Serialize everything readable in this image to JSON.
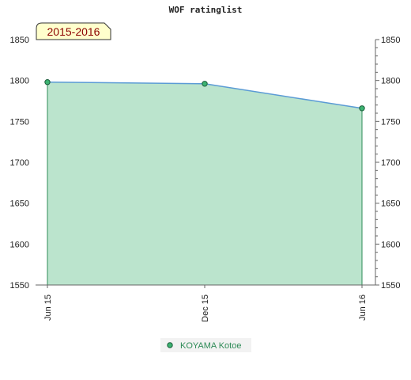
{
  "chart_data": {
    "type": "area",
    "title": "WOF ratinglist",
    "period_label": "2015-2016",
    "xlabel": "",
    "ylabel": "",
    "x": [
      "Jun 15",
      "Dec 15",
      "Jun 16"
    ],
    "series": [
      {
        "name": "KOYAMA Kotoe",
        "values": [
          1798,
          1796,
          1766
        ]
      }
    ],
    "ylim": [
      1550,
      1850
    ],
    "yticks": [
      1550,
      1600,
      1650,
      1700,
      1750,
      1800,
      1850
    ],
    "y_axis_sides": "left-and-right",
    "grid": false,
    "legend": "bottom-center",
    "colors": {
      "line": "#5b9bd5",
      "area": "#3cb371",
      "marker": "#3cb371",
      "period_bg": "#ffffcc",
      "period_text": "#8b0000",
      "legend_text": "#2e8b57"
    },
    "band_colors": [
      "#f0f9f3",
      "#b3dfc2",
      "#c9e8d3",
      "#e2f3e8",
      "#8fd0a4",
      "#98d4aa",
      "#7ec595",
      "#a8dab7",
      "#9ad5ac",
      "#c1e5cd",
      "#f5fbf7",
      "#b5e0c3"
    ]
  }
}
